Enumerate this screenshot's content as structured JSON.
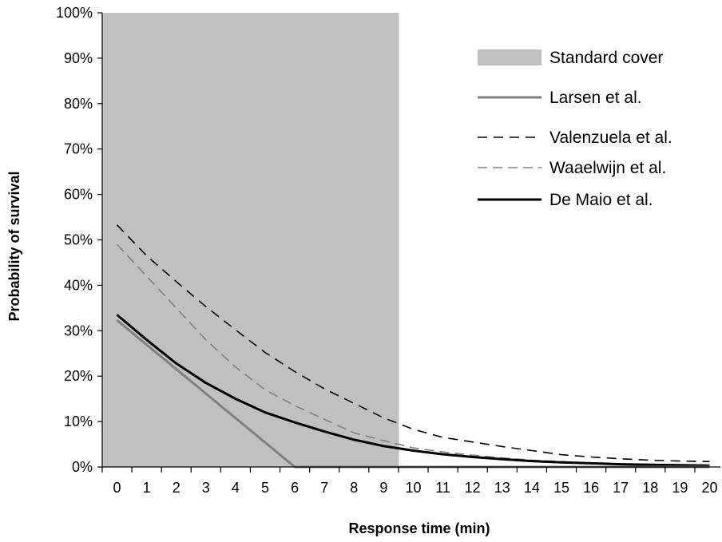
{
  "chart_data": {
    "type": "line",
    "title": "",
    "xlabel": "Response time (min)",
    "ylabel": "Probability of survival",
    "x": [
      0,
      1,
      2,
      3,
      4,
      5,
      6,
      7,
      8,
      9,
      10,
      11,
      12,
      13,
      14,
      15,
      16,
      17,
      18,
      19,
      20
    ],
    "xlim": [
      0,
      20
    ],
    "ylim": [
      0,
      100
    ],
    "y_ticks": [
      "0%",
      "10%",
      "20%",
      "30%",
      "40%",
      "50%",
      "60%",
      "70%",
      "80%",
      "90%",
      "100%"
    ],
    "x_ticks": [
      "0",
      "1",
      "2",
      "3",
      "4",
      "5",
      "6",
      "7",
      "8",
      "9",
      "10",
      "11",
      "12",
      "13",
      "14",
      "15",
      "16",
      "17",
      "18",
      "19",
      "20"
    ],
    "grid": false,
    "legend_position": "top-right",
    "shaded_region": {
      "name": "Standard cover",
      "x_start": 0,
      "x_end": 9.5,
      "color": "#c0c0c0"
    },
    "series": [
      {
        "name": "Larsen et al.",
        "color": "#808080",
        "style": "solid",
        "x": [
          0,
          6
        ],
        "values": [
          32.3,
          0
        ]
      },
      {
        "name": "Valenzuela et al.",
        "color": "#000000",
        "style": "dashed",
        "x": [
          0,
          1,
          2,
          3,
          4,
          5,
          6,
          7,
          8,
          9,
          10,
          11,
          12,
          13,
          14,
          15,
          16,
          17,
          18,
          19,
          20
        ],
        "values": [
          53.3,
          46.5,
          40.8,
          35.3,
          30.2,
          25.2,
          21.0,
          17.2,
          14.0,
          10.8,
          8.3,
          6.5,
          5.5,
          4.5,
          3.6,
          2.7,
          2.2,
          1.8,
          1.5,
          1.3,
          1.2
        ]
      },
      {
        "name": "Waaelwijn et al.",
        "color": "#808080",
        "style": "dashed",
        "x": [
          0,
          1,
          2,
          3,
          4,
          5,
          6,
          7,
          8,
          9,
          10,
          11,
          12,
          13,
          14,
          15,
          16,
          17,
          18,
          19,
          20
        ],
        "values": [
          49.0,
          42.0,
          35.0,
          28.0,
          22.0,
          17.0,
          13.5,
          10.5,
          7.5,
          5.8,
          4.2,
          3.3,
          2.6,
          2.0,
          1.5,
          1.2,
          0.9,
          0.7,
          0.5,
          0.4,
          0.3
        ]
      },
      {
        "name": "De Maio et al.",
        "color": "#000000",
        "style": "solid",
        "x": [
          0,
          1,
          2,
          3,
          4,
          5,
          6,
          7,
          8,
          9,
          10,
          11,
          12,
          13,
          14,
          15,
          16,
          17,
          18,
          19,
          20
        ],
        "values": [
          33.5,
          28.0,
          22.8,
          18.5,
          15.0,
          12.0,
          9.8,
          7.8,
          6.0,
          4.6,
          3.6,
          2.8,
          2.2,
          1.7,
          1.3,
          1.0,
          0.8,
          0.6,
          0.5,
          0.4,
          0.3
        ]
      }
    ]
  }
}
